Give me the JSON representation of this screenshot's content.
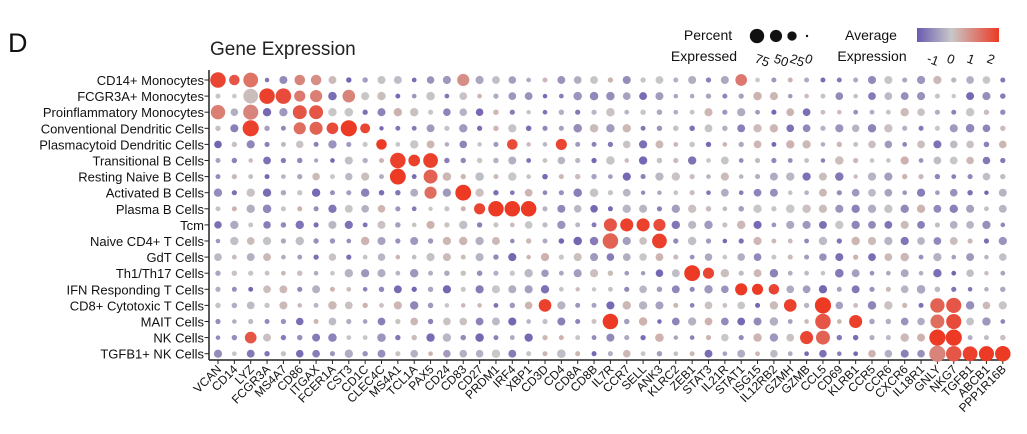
{
  "panel_label": "D",
  "chart_data": {
    "type": "dotplot",
    "title": "Gene Expression",
    "genes": [
      "VCAN",
      "CD14",
      "LYZ",
      "FCGR3A",
      "MS4A7",
      "CD86",
      "ITGAX",
      "FCER1A",
      "CST3",
      "CD1C",
      "CLEC4C",
      "MS4A1",
      "TCL1A",
      "PAX5",
      "CD24",
      "CD83",
      "CD27",
      "PRDM1",
      "IRF4",
      "XBP1",
      "CD3D",
      "CD4",
      "CD8A",
      "CD8B",
      "IL7R",
      "CCR7",
      "SELL",
      "ANK3",
      "KLRC2",
      "ZEB1",
      "STAT3",
      "IL21R",
      "STAT1",
      "ISG15",
      "IL12RB2",
      "GZMH",
      "GZMB",
      "CCL5",
      "CD69",
      "KLRB1",
      "CCR5",
      "CCR6",
      "CXCR6",
      "IL18R1",
      "GNLY",
      "NKG7",
      "TGFB1",
      "ABCB1",
      "PPP1R16B"
    ],
    "cell_types": [
      "CD14+ Monocytes",
      "FCGR3A+ Monocytes",
      "Proinflammatory Monocytes",
      "Conventional Dendritic Cells",
      "Plasmacytoid Dendritic Cells",
      "Transitional B Cells",
      "Resting Naive B Cells",
      "Activated B Cells",
      "Plasma B Cells",
      "Tcm",
      "Naive CD4+ T Cells",
      "GdT Cells",
      "Th1/Th17 Cells",
      "IFN Responding T Cells",
      "CD8+ Cytotoxic T Cells",
      "MAIT Cells",
      "NK Cells",
      "TGFB1+ NK Cells"
    ],
    "high_points": [
      {
        "cell": "CD14+ Monocytes",
        "gene": "VCAN",
        "pct": 90,
        "expr": 2.3
      },
      {
        "cell": "CD14+ Monocytes",
        "gene": "CD14",
        "pct": 35,
        "expr": 2.0
      },
      {
        "cell": "CD14+ Monocytes",
        "gene": "LYZ",
        "pct": 80,
        "expr": 1.5
      },
      {
        "cell": "CD14+ Monocytes",
        "gene": "CD86",
        "pct": 35,
        "expr": 1.2
      },
      {
        "cell": "CD14+ Monocytes",
        "gene": "ITGAX",
        "pct": 35,
        "expr": 1.0
      },
      {
        "cell": "CD14+ Monocytes",
        "gene": "CD83",
        "pct": 50,
        "expr": 1.0
      },
      {
        "cell": "CD14+ Monocytes",
        "gene": "STAT1",
        "pct": 45,
        "expr": 1.4
      },
      {
        "cell": "FCGR3A+ Monocytes",
        "gene": "LYZ",
        "pct": 80,
        "expr": 0.2
      },
      {
        "cell": "FCGR3A+ Monocytes",
        "gene": "FCGR3A",
        "pct": 90,
        "expr": 2.4
      },
      {
        "cell": "FCGR3A+ Monocytes",
        "gene": "MS4A7",
        "pct": 90,
        "expr": 2.2
      },
      {
        "cell": "FCGR3A+ Monocytes",
        "gene": "CD86",
        "pct": 40,
        "expr": 1.4
      },
      {
        "cell": "FCGR3A+ Monocytes",
        "gene": "ITGAX",
        "pct": 50,
        "expr": 1.3
      },
      {
        "cell": "FCGR3A+ Monocytes",
        "gene": "CST3",
        "pct": 55,
        "expr": 1.2
      },
      {
        "cell": "Proinflammatory Monocytes",
        "gene": "VCAN",
        "pct": 75,
        "expr": 1.3
      },
      {
        "cell": "Proinflammatory Monocytes",
        "gene": "LYZ",
        "pct": 85,
        "expr": 1.2
      },
      {
        "cell": "Proinflammatory Monocytes",
        "gene": "CD86",
        "pct": 70,
        "expr": 2.0
      },
      {
        "cell": "Proinflammatory Monocytes",
        "gene": "ITGAX",
        "pct": 70,
        "expr": 2.0
      },
      {
        "cell": "Conventional Dendritic Cells",
        "gene": "LYZ",
        "pct": 100,
        "expr": 2.4
      },
      {
        "cell": "Conventional Dendritic Cells",
        "gene": "CD86",
        "pct": 50,
        "expr": 1.6
      },
      {
        "cell": "Conventional Dendritic Cells",
        "gene": "ITGAX",
        "pct": 60,
        "expr": 1.8
      },
      {
        "cell": "Conventional Dendritic Cells",
        "gene": "FCER1A",
        "pct": 45,
        "expr": 2.2
      },
      {
        "cell": "Conventional Dendritic Cells",
        "gene": "CST3",
        "pct": 100,
        "expr": 2.5
      },
      {
        "cell": "Conventional Dendritic Cells",
        "gene": "CD1C",
        "pct": 30,
        "expr": 2.3
      },
      {
        "cell": "Plasmacytoid Dendritic Cells",
        "gene": "CLEC4C",
        "pct": 35,
        "expr": 2.5
      },
      {
        "cell": "Plasmacytoid Dendritic Cells",
        "gene": "IRF4",
        "pct": 35,
        "expr": 2.2
      },
      {
        "cell": "Plasmacytoid Dendritic Cells",
        "gene": "CD4",
        "pct": 40,
        "expr": 2.3
      },
      {
        "cell": "Transitional B Cells",
        "gene": "MS4A1",
        "pct": 90,
        "expr": 2.4
      },
      {
        "cell": "Transitional B Cells",
        "gene": "TCL1A",
        "pct": 45,
        "expr": 2.4
      },
      {
        "cell": "Transitional B Cells",
        "gene": "PAX5",
        "pct": 80,
        "expr": 2.4
      },
      {
        "cell": "Resting Naive B Cells",
        "gene": "MS4A1",
        "pct": 95,
        "expr": 2.5
      },
      {
        "cell": "Resting Naive B Cells",
        "gene": "PAX5",
        "pct": 70,
        "expr": 1.8
      },
      {
        "cell": "Activated B Cells",
        "gene": "PAX5",
        "pct": 50,
        "expr": 1.6
      },
      {
        "cell": "Activated B Cells",
        "gene": "CD83",
        "pct": 95,
        "expr": 2.5
      },
      {
        "cell": "Plasma B Cells",
        "gene": "CD27",
        "pct": 40,
        "expr": 2.3
      },
      {
        "cell": "Plasma B Cells",
        "gene": "PRDM1",
        "pct": 90,
        "expr": 2.5
      },
      {
        "cell": "Plasma B Cells",
        "gene": "IRF4",
        "pct": 90,
        "expr": 2.5
      },
      {
        "cell": "Plasma B Cells",
        "gene": "XBP1",
        "pct": 90,
        "expr": 2.5
      },
      {
        "cell": "Tcm",
        "gene": "IL7R",
        "pct": 60,
        "expr": 2.0
      },
      {
        "cell": "Tcm",
        "gene": "CCR7",
        "pct": 60,
        "expr": 2.4
      },
      {
        "cell": "Tcm",
        "gene": "SELL",
        "pct": 60,
        "expr": 2.4
      },
      {
        "cell": "Tcm",
        "gene": "ANK3",
        "pct": 50,
        "expr": 2.2
      },
      {
        "cell": "Naive CD4+ T Cells",
        "gene": "IL7R",
        "pct": 90,
        "expr": 1.8
      },
      {
        "cell": "Naive CD4+ T Cells",
        "gene": "ANK3",
        "pct": 80,
        "expr": 2.4
      },
      {
        "cell": "Th1/Th17 Cells",
        "gene": "ZEB1",
        "pct": 95,
        "expr": 2.5
      },
      {
        "cell": "Th1/Th17 Cells",
        "gene": "STAT3",
        "pct": 40,
        "expr": 2.3
      },
      {
        "cell": "IFN Responding T Cells",
        "gene": "STAT1",
        "pct": 50,
        "expr": 2.5
      },
      {
        "cell": "IFN Responding T Cells",
        "gene": "ISG15",
        "pct": 40,
        "expr": 2.5
      },
      {
        "cell": "IFN Responding T Cells",
        "gene": "IL12RB2",
        "pct": 35,
        "expr": 2.3
      },
      {
        "cell": "CD8+ Cytotoxic T Cells",
        "gene": "CD3D",
        "pct": 55,
        "expr": 2.4
      },
      {
        "cell": "CD8+ Cytotoxic T Cells",
        "gene": "GZMH",
        "pct": 55,
        "expr": 2.4
      },
      {
        "cell": "CD8+ Cytotoxic T Cells",
        "gene": "CCL5",
        "pct": 100,
        "expr": 2.5
      },
      {
        "cell": "CD8+ Cytotoxic T Cells",
        "gene": "GNLY",
        "pct": 75,
        "expr": 1.8
      },
      {
        "cell": "CD8+ Cytotoxic T Cells",
        "gene": "NKG7",
        "pct": 85,
        "expr": 2.0
      },
      {
        "cell": "MAIT Cells",
        "gene": "IL7R",
        "pct": 90,
        "expr": 2.5
      },
      {
        "cell": "MAIT Cells",
        "gene": "CCL5",
        "pct": 90,
        "expr": 2.0
      },
      {
        "cell": "MAIT Cells",
        "gene": "KLRB1",
        "pct": 60,
        "expr": 2.4
      },
      {
        "cell": "MAIT Cells",
        "gene": "GNLY",
        "pct": 70,
        "expr": 1.6
      },
      {
        "cell": "MAIT Cells",
        "gene": "NKG7",
        "pct": 85,
        "expr": 2.2
      },
      {
        "cell": "NK Cells",
        "gene": "LYZ",
        "pct": 45,
        "expr": 2.0
      },
      {
        "cell": "NK Cells",
        "gene": "GZMB",
        "pct": 60,
        "expr": 2.3
      },
      {
        "cell": "NK Cells",
        "gene": "CCL5",
        "pct": 70,
        "expr": 1.8
      },
      {
        "cell": "NK Cells",
        "gene": "GNLY",
        "pct": 100,
        "expr": 2.5
      },
      {
        "cell": "NK Cells",
        "gene": "NKG7",
        "pct": 100,
        "expr": 2.5
      },
      {
        "cell": "TGFB1+ NK Cells",
        "gene": "GNLY",
        "pct": 100,
        "expr": 1.2
      },
      {
        "cell": "TGFB1+ NK Cells",
        "gene": "NKG7",
        "pct": 90,
        "expr": 2.0
      },
      {
        "cell": "TGFB1+ NK Cells",
        "gene": "TGFB1",
        "pct": 80,
        "expr": 2.4
      },
      {
        "cell": "TGFB1+ NK Cells",
        "gene": "ABCB1",
        "pct": 85,
        "expr": 2.5
      },
      {
        "cell": "TGFB1+ NK Cells",
        "gene": "PPP1R16B",
        "pct": 90,
        "expr": 2.5
      }
    ],
    "size_legend": {
      "title_line1": "Percent",
      "title_line2": "Expressed",
      "values": [
        75,
        50,
        25,
        0
      ],
      "labels": [
        "75",
        "50",
        "25",
        "0"
      ]
    },
    "color_legend": {
      "title_line1": "Average",
      "title_line2": "Expression",
      "ticks": [
        -1,
        0,
        1,
        2
      ],
      "tick_labels": [
        "-1",
        "0",
        "1",
        "2"
      ],
      "colors": [
        "#6a5ab0",
        "#c8c8c8",
        "#ec3a25"
      ]
    }
  }
}
